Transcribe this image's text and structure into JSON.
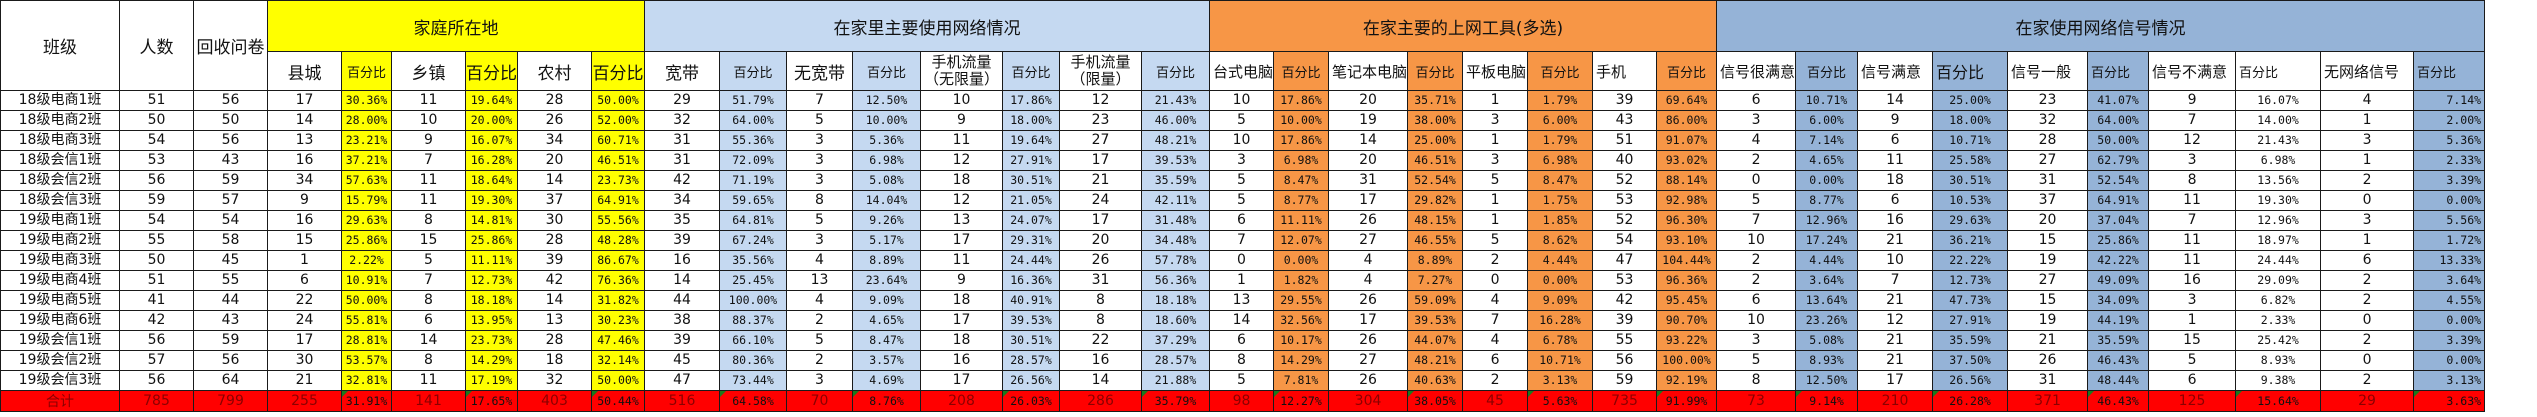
{
  "sheet": {
    "headers": {
      "class": "班级",
      "people": "人数",
      "returned": "回收问卷",
      "group_home": "家庭所在地",
      "group_network": "在家里主要使用网络情况",
      "group_tools": "在家主要的上网工具(多选)",
      "group_signal": "在家使用网络信号情况",
      "percent": "百分比",
      "county": "县城",
      "town": "乡镇",
      "village": "农村",
      "broadband": "宽带",
      "no_broadband": "无宽带",
      "mobile_unlimited": "手机流量（无限量）",
      "mobile_limited": "手机流量（限量）",
      "desktop": "台式电脑",
      "laptop": "笔记本电脑",
      "tablet": "平板电脑",
      "phone": "手机",
      "sig_very_satisfied": "信号很满意",
      "sig_satisfied": "信号满意",
      "sig_average": "信号一般",
      "sig_unsatisfied": "信号不满意",
      "sig_none": "无网络信号"
    },
    "colors": {
      "home": "#ffff00",
      "network": "#c5d9f1",
      "tools": "#f79646",
      "signal": "#95b3d7",
      "total_row": "#ff0000"
    },
    "rows": [
      {
        "c": "18级电商1班",
        "p": "51",
        "r": "56",
        "v": [
          "17",
          "30.36%",
          "11",
          "19.64%",
          "28",
          "50.00%",
          "29",
          "51.79%",
          "7",
          "12.50%",
          "10",
          "17.86%",
          "12",
          "21.43%",
          "10",
          "17.86%",
          "20",
          "35.71%",
          "1",
          "1.79%",
          "39",
          "69.64%",
          "6",
          "10.71%",
          "14",
          "25.00%",
          "23",
          "41.07%",
          "9",
          "16.07%",
          "4",
          "7.14%"
        ]
      },
      {
        "c": "18级电商2班",
        "p": "50",
        "r": "50",
        "v": [
          "14",
          "28.00%",
          "10",
          "20.00%",
          "26",
          "52.00%",
          "32",
          "64.00%",
          "5",
          "10.00%",
          "9",
          "18.00%",
          "23",
          "46.00%",
          "5",
          "10.00%",
          "19",
          "38.00%",
          "3",
          "6.00%",
          "43",
          "86.00%",
          "3",
          "6.00%",
          "9",
          "18.00%",
          "32",
          "64.00%",
          "7",
          "14.00%",
          "1",
          "2.00%"
        ]
      },
      {
        "c": "18级电商3班",
        "p": "54",
        "r": "56",
        "v": [
          "13",
          "23.21%",
          "9",
          "16.07%",
          "34",
          "60.71%",
          "31",
          "55.36%",
          "3",
          "5.36%",
          "11",
          "19.64%",
          "27",
          "48.21%",
          "10",
          "17.86%",
          "14",
          "25.00%",
          "1",
          "1.79%",
          "51",
          "91.07%",
          "4",
          "7.14%",
          "6",
          "10.71%",
          "28",
          "50.00%",
          "12",
          "21.43%",
          "3",
          "5.36%"
        ]
      },
      {
        "c": "18级会信1班",
        "p": "53",
        "r": "43",
        "v": [
          "16",
          "37.21%",
          "7",
          "16.28%",
          "20",
          "46.51%",
          "31",
          "72.09%",
          "3",
          "6.98%",
          "12",
          "27.91%",
          "17",
          "39.53%",
          "3",
          "6.98%",
          "20",
          "46.51%",
          "3",
          "6.98%",
          "40",
          "93.02%",
          "2",
          "4.65%",
          "11",
          "25.58%",
          "27",
          "62.79%",
          "3",
          "6.98%",
          "1",
          "2.33%"
        ]
      },
      {
        "c": "18级会信2班",
        "p": "56",
        "r": "59",
        "v": [
          "34",
          "57.63%",
          "11",
          "18.64%",
          "14",
          "23.73%",
          "42",
          "71.19%",
          "3",
          "5.08%",
          "18",
          "30.51%",
          "21",
          "35.59%",
          "5",
          "8.47%",
          "31",
          "52.54%",
          "5",
          "8.47%",
          "52",
          "88.14%",
          "0",
          "0.00%",
          "18",
          "30.51%",
          "31",
          "52.54%",
          "8",
          "13.56%",
          "2",
          "3.39%"
        ]
      },
      {
        "c": "18级会信3班",
        "p": "59",
        "r": "57",
        "v": [
          "9",
          "15.79%",
          "11",
          "19.30%",
          "37",
          "64.91%",
          "34",
          "59.65%",
          "8",
          "14.04%",
          "12",
          "21.05%",
          "24",
          "42.11%",
          "5",
          "8.77%",
          "17",
          "29.82%",
          "1",
          "1.75%",
          "53",
          "92.98%",
          "5",
          "8.77%",
          "6",
          "10.53%",
          "37",
          "64.91%",
          "11",
          "19.30%",
          "0",
          "0.00%"
        ]
      },
      {
        "c": "19级电商1班",
        "p": "54",
        "r": "54",
        "v": [
          "16",
          "29.63%",
          "8",
          "14.81%",
          "30",
          "55.56%",
          "35",
          "64.81%",
          "5",
          "9.26%",
          "13",
          "24.07%",
          "17",
          "31.48%",
          "6",
          "11.11%",
          "26",
          "48.15%",
          "1",
          "1.85%",
          "52",
          "96.30%",
          "7",
          "12.96%",
          "16",
          "29.63%",
          "20",
          "37.04%",
          "7",
          "12.96%",
          "3",
          "5.56%"
        ]
      },
      {
        "c": "19级电商2班",
        "p": "55",
        "r": "58",
        "v": [
          "15",
          "25.86%",
          "15",
          "25.86%",
          "28",
          "48.28%",
          "39",
          "67.24%",
          "3",
          "5.17%",
          "17",
          "29.31%",
          "20",
          "34.48%",
          "7",
          "12.07%",
          "27",
          "46.55%",
          "5",
          "8.62%",
          "54",
          "93.10%",
          "10",
          "17.24%",
          "21",
          "36.21%",
          "15",
          "25.86%",
          "11",
          "18.97%",
          "1",
          "1.72%"
        ]
      },
      {
        "c": "19级电商3班",
        "p": "50",
        "r": "45",
        "v": [
          "1",
          "2.22%",
          "5",
          "11.11%",
          "39",
          "86.67%",
          "16",
          "35.56%",
          "4",
          "8.89%",
          "11",
          "24.44%",
          "26",
          "57.78%",
          "0",
          "0.00%",
          "4",
          "8.89%",
          "2",
          "4.44%",
          "47",
          "104.44%",
          "2",
          "4.44%",
          "10",
          "22.22%",
          "19",
          "42.22%",
          "11",
          "24.44%",
          "6",
          "13.33%"
        ]
      },
      {
        "c": "19级电商4班",
        "p": "51",
        "r": "55",
        "v": [
          "6",
          "10.91%",
          "7",
          "12.73%",
          "42",
          "76.36%",
          "14",
          "25.45%",
          "13",
          "23.64%",
          "9",
          "16.36%",
          "31",
          "56.36%",
          "1",
          "1.82%",
          "4",
          "7.27%",
          "0",
          "0.00%",
          "53",
          "96.36%",
          "2",
          "3.64%",
          "7",
          "12.73%",
          "27",
          "49.09%",
          "16",
          "29.09%",
          "2",
          "3.64%"
        ]
      },
      {
        "c": "19级电商5班",
        "p": "41",
        "r": "44",
        "v": [
          "22",
          "50.00%",
          "8",
          "18.18%",
          "14",
          "31.82%",
          "44",
          "100.00%",
          "4",
          "9.09%",
          "18",
          "40.91%",
          "8",
          "18.18%",
          "13",
          "29.55%",
          "26",
          "59.09%",
          "4",
          "9.09%",
          "42",
          "95.45%",
          "6",
          "13.64%",
          "21",
          "47.73%",
          "15",
          "34.09%",
          "3",
          "6.82%",
          "2",
          "4.55%"
        ]
      },
      {
        "c": "19级电商6班",
        "p": "42",
        "r": "43",
        "v": [
          "24",
          "55.81%",
          "6",
          "13.95%",
          "13",
          "30.23%",
          "38",
          "88.37%",
          "2",
          "4.65%",
          "17",
          "39.53%",
          "8",
          "18.60%",
          "14",
          "32.56%",
          "17",
          "39.53%",
          "7",
          "16.28%",
          "39",
          "90.70%",
          "10",
          "23.26%",
          "12",
          "27.91%",
          "19",
          "44.19%",
          "1",
          "2.33%",
          "0",
          "0.00%"
        ]
      },
      {
        "c": "19级会信1班",
        "p": "56",
        "r": "59",
        "v": [
          "17",
          "28.81%",
          "14",
          "23.73%",
          "28",
          "47.46%",
          "39",
          "66.10%",
          "5",
          "8.47%",
          "18",
          "30.51%",
          "22",
          "37.29%",
          "6",
          "10.17%",
          "26",
          "44.07%",
          "4",
          "6.78%",
          "55",
          "93.22%",
          "3",
          "5.08%",
          "21",
          "35.59%",
          "21",
          "35.59%",
          "15",
          "25.42%",
          "2",
          "3.39%"
        ]
      },
      {
        "c": "19级会信2班",
        "p": "57",
        "r": "56",
        "v": [
          "30",
          "53.57%",
          "8",
          "14.29%",
          "18",
          "32.14%",
          "45",
          "80.36%",
          "2",
          "3.57%",
          "16",
          "28.57%",
          "16",
          "28.57%",
          "8",
          "14.29%",
          "27",
          "48.21%",
          "6",
          "10.71%",
          "56",
          "100.00%",
          "5",
          "8.93%",
          "21",
          "37.50%",
          "26",
          "46.43%",
          "5",
          "8.93%",
          "0",
          "0.00%"
        ]
      },
      {
        "c": "19级会信3班",
        "p": "56",
        "r": "64",
        "v": [
          "21",
          "32.81%",
          "11",
          "17.19%",
          "32",
          "50.00%",
          "47",
          "73.44%",
          "3",
          "4.69%",
          "17",
          "26.56%",
          "14",
          "21.88%",
          "5",
          "7.81%",
          "26",
          "40.63%",
          "2",
          "3.13%",
          "59",
          "92.19%",
          "8",
          "12.50%",
          "17",
          "26.56%",
          "31",
          "48.44%",
          "6",
          "9.38%",
          "2",
          "3.13%"
        ]
      }
    ],
    "total": {
      "c": "合计",
      "p": "785",
      "r": "799",
      "v": [
        "255",
        "31.91%",
        "141",
        "17.65%",
        "403",
        "50.44%",
        "516",
        "64.58%",
        "70",
        "8.76%",
        "208",
        "26.03%",
        "286",
        "35.79%",
        "98",
        "12.27%",
        "304",
        "38.05%",
        "45",
        "5.63%",
        "735",
        "91.99%",
        "73",
        "9.14%",
        "210",
        "26.28%",
        "371",
        "46.43%",
        "125",
        "15.64%",
        "29",
        "3.63%"
      ]
    }
  }
}
